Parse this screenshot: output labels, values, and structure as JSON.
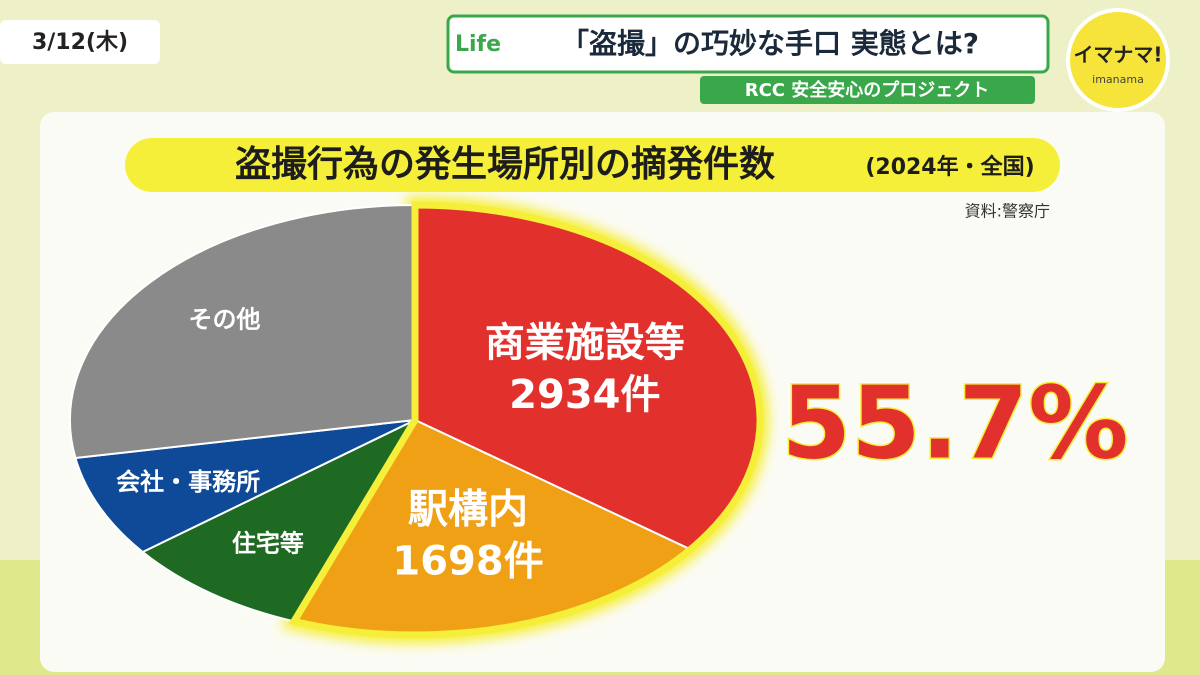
{
  "header": {
    "date": "3/12(木)",
    "corner_tag": "Life",
    "headline": "「盗撮」の巧妙な手口 実態とは?",
    "project": "RCC 安全安心のプロジェクト",
    "logo": "イマナマ!",
    "logo_sub": "imanama"
  },
  "chart_data": {
    "type": "pie",
    "title": "盗撮行為の発生場所別の摘発件数",
    "subtitle": "(2024年・全国)",
    "source": "資料:警察庁",
    "categories": [
      "商業施設等",
      "駅構内",
      "住宅等",
      "会社・事務所",
      "その他"
    ],
    "values": [
      2934,
      1698,
      730,
      640,
      2314
    ],
    "value_labels": [
      "2934件",
      "1698件",
      null,
      null,
      null
    ],
    "colors": [
      "#e2312c",
      "#f0a014",
      "#1f6a22",
      "#0e4a98",
      "#8a8a8a"
    ],
    "annotation": "55.7%"
  }
}
